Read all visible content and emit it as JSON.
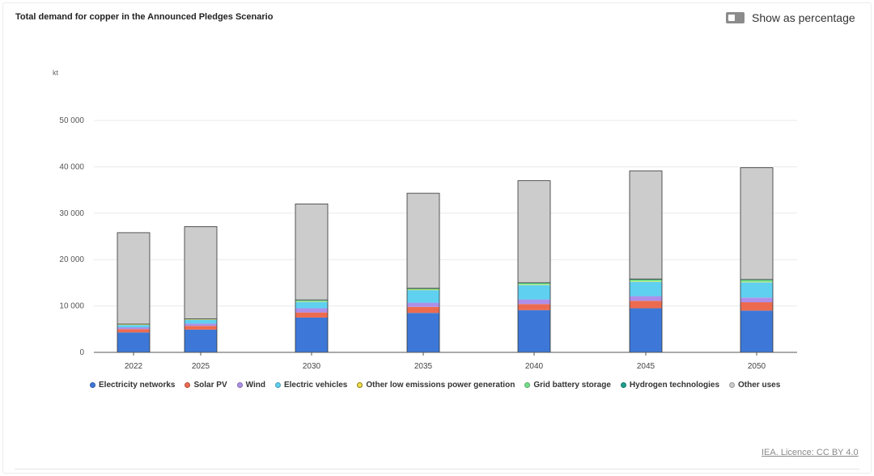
{
  "title": "Total demand for copper in the Announced Pledges Scenario",
  "toggle": {
    "label": "Show as percentage",
    "checked": false
  },
  "source": "IEA. Licence: CC BY 4.0",
  "chart_data": {
    "type": "bar",
    "stacked": true,
    "unit_label": "kt",
    "ylim": [
      0,
      50000
    ],
    "yticks": [
      0,
      10000,
      20000,
      30000,
      40000,
      50000
    ],
    "ytick_labels": [
      "0",
      "10 000",
      "20 000",
      "30 000",
      "40 000",
      "50 000"
    ],
    "grid": true,
    "legend_position": "bottom",
    "categories": [
      "2022",
      "2025",
      "2030",
      "2035",
      "2040",
      "2045",
      "2050"
    ],
    "series": [
      {
        "name": "Electricity networks",
        "color": "#3d78d8",
        "values": [
          4300,
          4900,
          7500,
          8500,
          9100,
          9500,
          9000
        ]
      },
      {
        "name": "Solar PV",
        "color": "#ec6b4f",
        "values": [
          700,
          800,
          1100,
          1300,
          1300,
          1600,
          1800
        ]
      },
      {
        "name": "Wind",
        "color": "#ad8fe8",
        "values": [
          400,
          500,
          900,
          900,
          1000,
          1000,
          1000
        ]
      },
      {
        "name": "Electric vehicles",
        "color": "#5fd0f0",
        "values": [
          500,
          800,
          1400,
          2700,
          3100,
          3100,
          3300
        ]
      },
      {
        "name": "Other low emissions power generation",
        "color": "#f6e04b",
        "values": [
          100,
          100,
          100,
          100,
          100,
          100,
          100
        ]
      },
      {
        "name": "Grid battery storage",
        "color": "#74e08a",
        "values": [
          100,
          100,
          200,
          200,
          300,
          400,
          400
        ]
      },
      {
        "name": "Hydrogen technologies",
        "color": "#1e9e8e",
        "values": [
          0,
          0,
          100,
          100,
          100,
          100,
          100
        ]
      },
      {
        "name": "Other uses",
        "color": "#cccccc",
        "values": [
          19700,
          19900,
          20700,
          20500,
          22000,
          23300,
          24100
        ]
      }
    ]
  }
}
